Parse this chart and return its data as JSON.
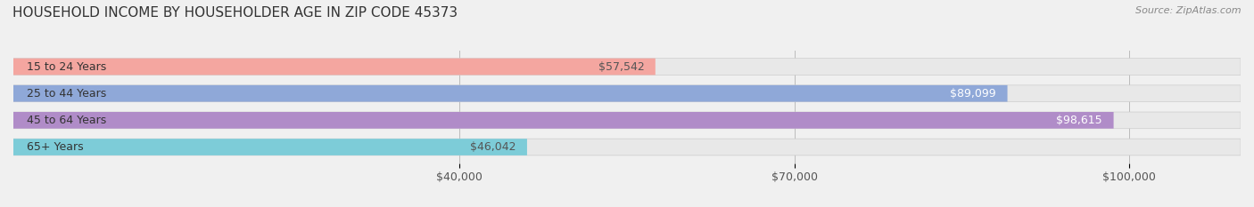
{
  "title": "HOUSEHOLD INCOME BY HOUSEHOLDER AGE IN ZIP CODE 45373",
  "source": "Source: ZipAtlas.com",
  "categories": [
    "15 to 24 Years",
    "25 to 44 Years",
    "45 to 64 Years",
    "65+ Years"
  ],
  "values": [
    57542,
    89099,
    98615,
    46042
  ],
  "bar_colors": [
    "#f4a6a0",
    "#8fa8d8",
    "#b08cc8",
    "#7dccd8"
  ],
  "label_colors": [
    "#555555",
    "#ffffff",
    "#ffffff",
    "#555555"
  ],
  "background_color": "#f0f0f0",
  "bar_bg_color": "#e8e8e8",
  "xlim": [
    0,
    110000
  ],
  "xticks": [
    40000,
    70000,
    100000
  ],
  "xtick_labels": [
    "$40,000",
    "$70,000",
    "$100,000"
  ],
  "title_fontsize": 11,
  "source_fontsize": 8,
  "label_fontsize": 9,
  "tick_fontsize": 9,
  "category_fontsize": 9
}
